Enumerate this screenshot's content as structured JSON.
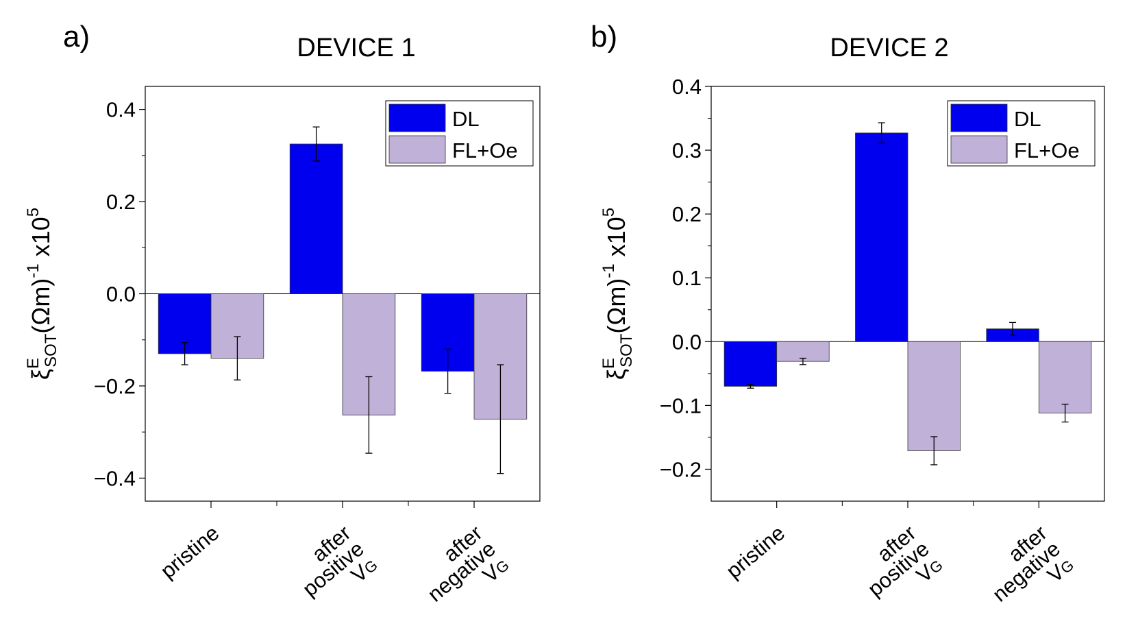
{
  "chart_data": [
    {
      "type": "bar",
      "panel_label": "a)",
      "title": "DEVICE 1",
      "ylabel": {
        "symbol": "ξ",
        "superscript": "E",
        "subscript": "SOT",
        "unit": "(Ωm)",
        "unit_exp": "-1",
        "scale": " x10",
        "scale_exp": "5"
      },
      "ylim": [
        -0.45,
        0.45
      ],
      "yticks": [
        0.4,
        0.2,
        0.0,
        -0.2,
        -0.4
      ],
      "ytick_labels": [
        "0.4",
        "0.2",
        "0.0",
        "−0.2",
        "−0.4"
      ],
      "categories": [
        {
          "lines": [
            "pristine"
          ],
          "sub": ""
        },
        {
          "lines": [
            "after",
            "positive",
            "V"
          ],
          "sub": "G"
        },
        {
          "lines": [
            "after",
            "negative",
            "V"
          ],
          "sub": "G"
        }
      ],
      "series": [
        {
          "name": "DL",
          "color": "#0000ee",
          "values": [
            -0.13,
            0.325,
            -0.168
          ],
          "errors": [
            0.024,
            0.037,
            0.048
          ]
        },
        {
          "name": "FL+Oe",
          "color": "#c0b1d8",
          "values": [
            -0.14,
            -0.263,
            -0.272
          ],
          "errors": [
            0.047,
            0.083,
            0.118
          ]
        }
      ],
      "legend": {
        "position": "top-right",
        "labels": [
          "DL",
          "FL+Oe"
        ]
      }
    },
    {
      "type": "bar",
      "panel_label": "b)",
      "title": "DEVICE 2",
      "ylabel": {
        "symbol": "ξ",
        "superscript": "E",
        "subscript": "SOT",
        "unit": "(Ωm)",
        "unit_exp": "-1",
        "scale": " x10",
        "scale_exp": "5"
      },
      "ylim": [
        -0.25,
        0.4
      ],
      "yticks": [
        0.4,
        0.3,
        0.2,
        0.1,
        0.0,
        -0.1,
        -0.2
      ],
      "ytick_labels": [
        "0.4",
        "0.3",
        "0.2",
        "0.1",
        "0.0",
        "−0.1",
        "−0.2"
      ],
      "categories": [
        {
          "lines": [
            "pristine"
          ],
          "sub": ""
        },
        {
          "lines": [
            "after",
            "positive",
            "V"
          ],
          "sub": "G"
        },
        {
          "lines": [
            "after",
            "negative",
            "V"
          ],
          "sub": "G"
        }
      ],
      "series": [
        {
          "name": "DL",
          "color": "#0000ee",
          "values": [
            -0.07,
            0.327,
            0.02
          ],
          "errors": [
            0.003,
            0.016,
            0.01
          ]
        },
        {
          "name": "FL+Oe",
          "color": "#c0b1d8",
          "values": [
            -0.031,
            -0.171,
            -0.112
          ],
          "errors": [
            0.005,
            0.022,
            0.014
          ]
        }
      ],
      "legend": {
        "position": "top-right",
        "labels": [
          "DL",
          "FL+Oe"
        ]
      }
    }
  ]
}
